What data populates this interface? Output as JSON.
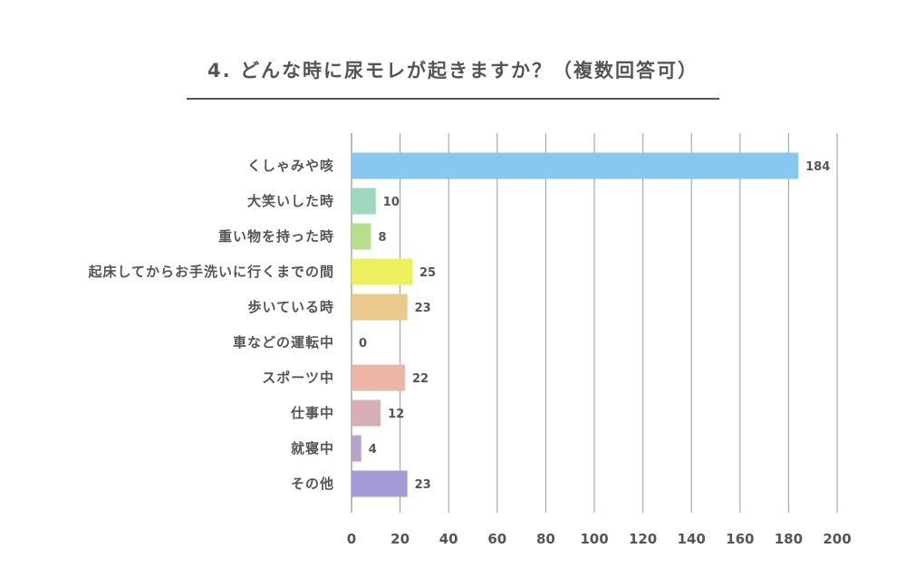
{
  "chart_data": {
    "type": "bar",
    "orientation": "horizontal",
    "title": "4. どんな時に尿モレが起きますか？（複数回答可）",
    "categories": [
      "くしゃみや咳",
      "大笑いした時",
      "重い物を持った時",
      "起床してからお手洗いに行くまでの間",
      "歩いている時",
      "車などの運転中",
      "スポーツ中",
      "仕事中",
      "就寝中",
      "その他"
    ],
    "values": [
      184,
      10,
      8,
      25,
      23,
      0,
      22,
      12,
      4,
      23
    ],
    "colors": [
      "#86c8ef",
      "#9fd8c0",
      "#b7df8a",
      "#ecef5e",
      "#ebc98d",
      "#dddddd",
      "#ebb6a6",
      "#d8aeb6",
      "#b9a3cd",
      "#a59ad7"
    ],
    "xlim": [
      0,
      200
    ],
    "xticks": [
      0,
      20,
      40,
      60,
      80,
      100,
      120,
      140,
      160,
      180,
      200
    ],
    "grid": true,
    "xlabel": "",
    "ylabel": ""
  }
}
